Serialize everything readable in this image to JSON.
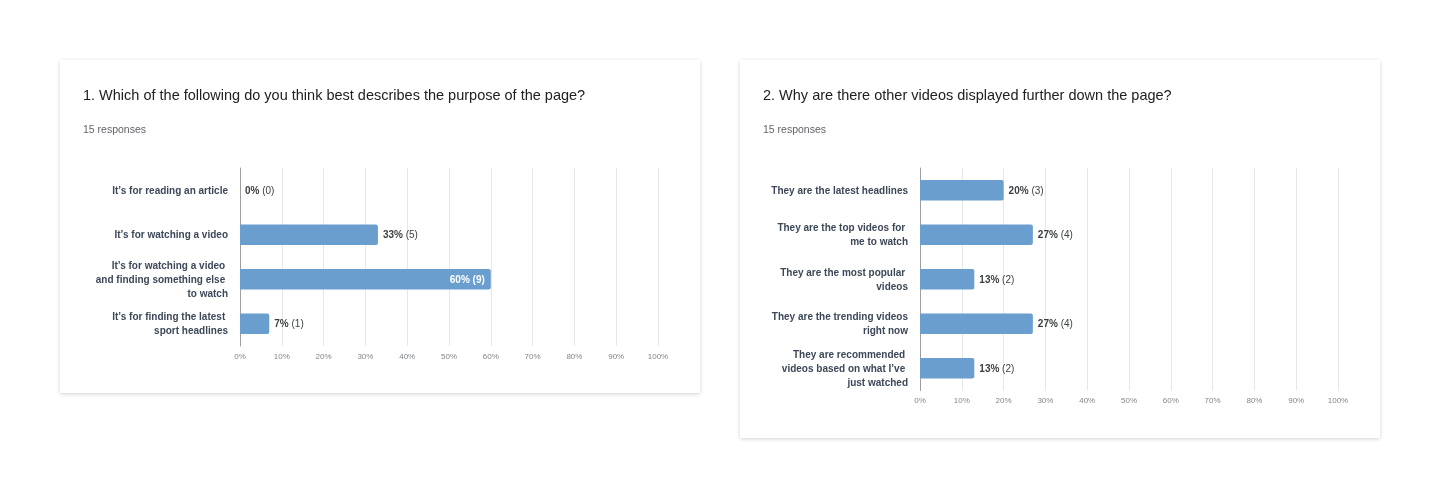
{
  "chart_data": [
    {
      "type": "bar",
      "orientation": "horizontal",
      "title": "1. Which of the following do you think best describes the purpose of the page?",
      "subtitle": "15 responses",
      "categories": [
        "It’s for reading an article",
        "It’s for watching a video",
        "It’s for watching a video and finding something else to watch",
        "It’s for finding the latest sport headlines"
      ],
      "values": [
        0,
        33,
        60,
        7
      ],
      "value_labels": [
        "0% (0)",
        "33% (5)",
        "60% (9)",
        "7% (1)"
      ],
      "color": "#6a9ecf",
      "xlim": [
        0,
        100
      ],
      "xticks": [
        {
          "value": 0,
          "label": "0%"
        },
        {
          "value": 10,
          "label": "10%"
        },
        {
          "value": 20,
          "label": "20%"
        },
        {
          "value": 30,
          "label": "30%"
        },
        {
          "value": 40,
          "label": "40%"
        },
        {
          "value": 50,
          "label": "50%"
        },
        {
          "value": 60,
          "label": "60%"
        },
        {
          "value": 70,
          "label": "70%"
        },
        {
          "value": 80,
          "label": "80%"
        },
        {
          "value": 90,
          "label": "90%"
        },
        {
          "value": 100,
          "label": "100%"
        }
      ],
      "grid": "x"
    },
    {
      "type": "bar",
      "orientation": "horizontal",
      "title": "2. Why are there other videos displayed further down the page?",
      "subtitle": "15 responses",
      "categories": [
        "They are the latest headlines",
        "They are the top videos for me to watch",
        "They are the most popular videos",
        "They are the trending videos right now",
        "They are recommended videos based on what I’ve just watched"
      ],
      "values": [
        20,
        27,
        13,
        27,
        13
      ],
      "value_labels": [
        "20% (3)",
        "27% (4)",
        "13% (2)",
        "27% (4)",
        "13% (2)"
      ],
      "color": "#6a9ecf",
      "xlim": [
        0,
        100
      ],
      "xticks": [
        {
          "value": 0,
          "label": "0%"
        },
        {
          "value": 10,
          "label": "10%"
        },
        {
          "value": 20,
          "label": "20%"
        },
        {
          "value": 30,
          "label": "30%"
        },
        {
          "value": 40,
          "label": "40%"
        },
        {
          "value": 50,
          "label": "50%"
        },
        {
          "value": 60,
          "label": "60%"
        },
        {
          "value": 70,
          "label": "70%"
        },
        {
          "value": 80,
          "label": "80%"
        },
        {
          "value": 90,
          "label": "90%"
        },
        {
          "value": 100,
          "label": "100%"
        }
      ],
      "grid": "x"
    }
  ]
}
